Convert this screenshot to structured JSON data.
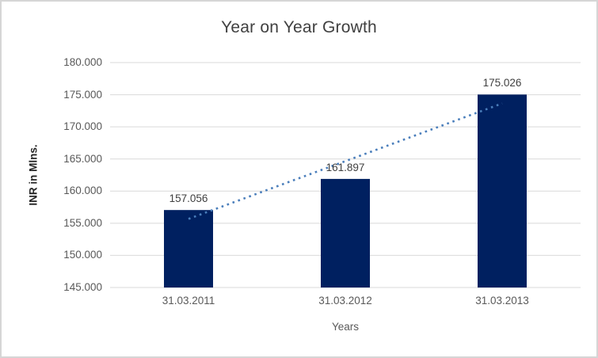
{
  "chart_data": {
    "type": "bar",
    "title": "Year on Year Growth",
    "xlabel": "Years",
    "ylabel": "INR in Mlns.",
    "categories": [
      "31.03.2011",
      "31.03.2012",
      "31.03.2013"
    ],
    "values": [
      157.056,
      161.897,
      175.026
    ],
    "data_labels": [
      "157.056",
      "161.897",
      "175.026"
    ],
    "yticks": [
      180,
      175,
      170,
      165,
      160,
      155,
      150,
      145
    ],
    "ytick_labels": [
      "180.000",
      "175.000",
      "170.000",
      "165.000",
      "160.000",
      "155.000",
      "150.000",
      "145.000"
    ],
    "ylim": [
      145,
      180
    ],
    "grid": "horizontal",
    "legend": "none",
    "trendline": {
      "type": "linear",
      "style": "dotted"
    },
    "colors": {
      "bar": "#002060",
      "trendline": "#4A7EBB",
      "gridline": "#D9D9D9",
      "title_text": "#404040",
      "axis_text": "#595959",
      "data_label_text": "#404040",
      "frame_border": "#D6D6D6",
      "background": "#FFFFFF"
    }
  }
}
